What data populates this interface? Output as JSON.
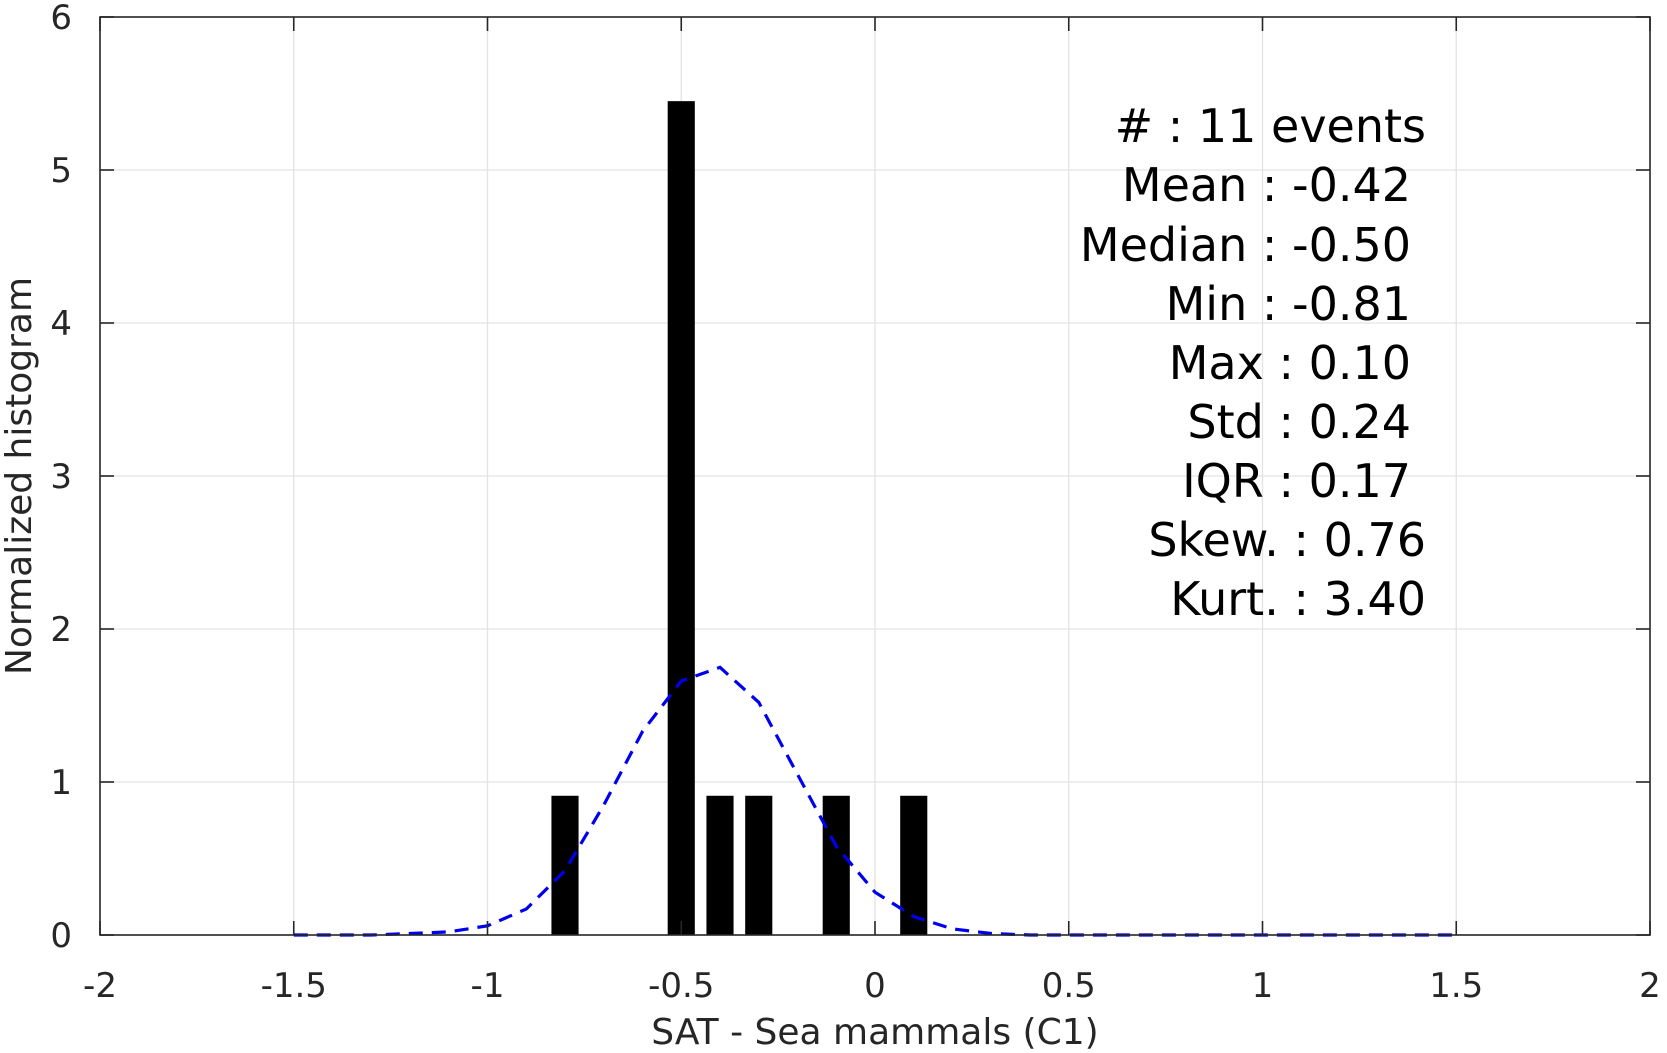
{
  "chart_data": {
    "type": "bar",
    "xlabel": "SAT - Sea mammals (C1)",
    "ylabel": "Normalized histogram",
    "xlim": [
      -2,
      2
    ],
    "ylim": [
      0,
      6
    ],
    "grid": true,
    "x_ticks": [
      "-2",
      "-1.5",
      "-1",
      "-0.5",
      "0",
      "0.5",
      "1",
      "1.5",
      "2"
    ],
    "y_ticks": [
      "0",
      "1",
      "2",
      "3",
      "4",
      "5",
      "6"
    ],
    "x_tick_values": [
      -2,
      -1.5,
      -1,
      -0.5,
      0,
      0.5,
      1,
      1.5,
      2
    ],
    "y_tick_values": [
      0,
      1,
      2,
      3,
      4,
      5,
      6
    ],
    "bar_color": "#000000",
    "bar_width": 0.07,
    "bars": [
      {
        "x": -0.8,
        "y": 0.91
      },
      {
        "x": -0.5,
        "y": 5.45
      },
      {
        "x": -0.4,
        "y": 0.91
      },
      {
        "x": -0.3,
        "y": 0.91
      },
      {
        "x": -0.1,
        "y": 0.91
      },
      {
        "x": 0.1,
        "y": 0.91
      }
    ],
    "curve": {
      "color": "#0000ee",
      "style": "dashed",
      "x": [
        -1.5,
        -1.4,
        -1.3,
        -1.2,
        -1.1,
        -1.0,
        -0.9,
        -0.8,
        -0.7,
        -0.6,
        -0.5,
        -0.4,
        -0.3,
        -0.2,
        -0.1,
        0.0,
        0.1,
        0.2,
        0.3,
        0.4,
        0.5,
        0.6,
        0.7,
        0.8,
        0.9,
        1.0,
        1.1,
        1.2,
        1.3,
        1.4,
        1.5
      ],
      "y": [
        0.0,
        0.0,
        0.0,
        0.01,
        0.02,
        0.06,
        0.17,
        0.42,
        0.85,
        1.33,
        1.66,
        1.75,
        1.52,
        1.05,
        0.58,
        0.28,
        0.12,
        0.04,
        0.01,
        0.0,
        0.0,
        0.0,
        0.0,
        0.0,
        0.0,
        0.0,
        0.0,
        0.0,
        0.0,
        0.0,
        0.0
      ]
    },
    "annotations": [
      "#  : 11 events",
      "Mean : -0.42",
      "Median : -0.50",
      "Min : -0.81",
      "Max : 0.10",
      "Std : 0.24",
      "IQR : 0.17",
      "Skew. : 0.76",
      "Kurt. : 3.40"
    ]
  }
}
